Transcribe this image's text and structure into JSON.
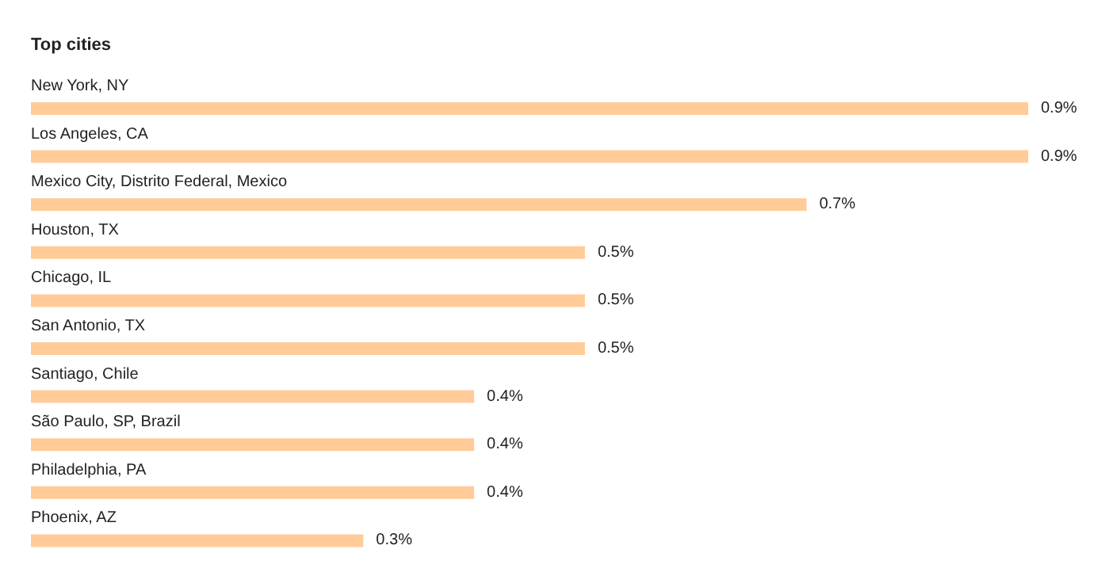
{
  "chart_data": {
    "type": "bar",
    "orientation": "horizontal",
    "title": "Top cities",
    "categories": [
      "New York, NY",
      "Los Angeles, CA",
      "Mexico City, Distrito Federal, Mexico",
      "Houston, TX",
      "Chicago, IL",
      "San Antonio, TX",
      "Santiago, Chile",
      "São Paulo, SP, Brazil",
      "Philadelphia, PA",
      "Phoenix, AZ"
    ],
    "values": [
      0.9,
      0.9,
      0.7,
      0.5,
      0.5,
      0.5,
      0.4,
      0.4,
      0.4,
      0.3
    ],
    "value_labels": [
      "0.9%",
      "0.9%",
      "0.7%",
      "0.5%",
      "0.5%",
      "0.5%",
      "0.4%",
      "0.4%",
      "0.4%",
      "0.3%"
    ],
    "color": "#ffcc99",
    "xlim": [
      0,
      0.9
    ],
    "tick_labels": false
  }
}
